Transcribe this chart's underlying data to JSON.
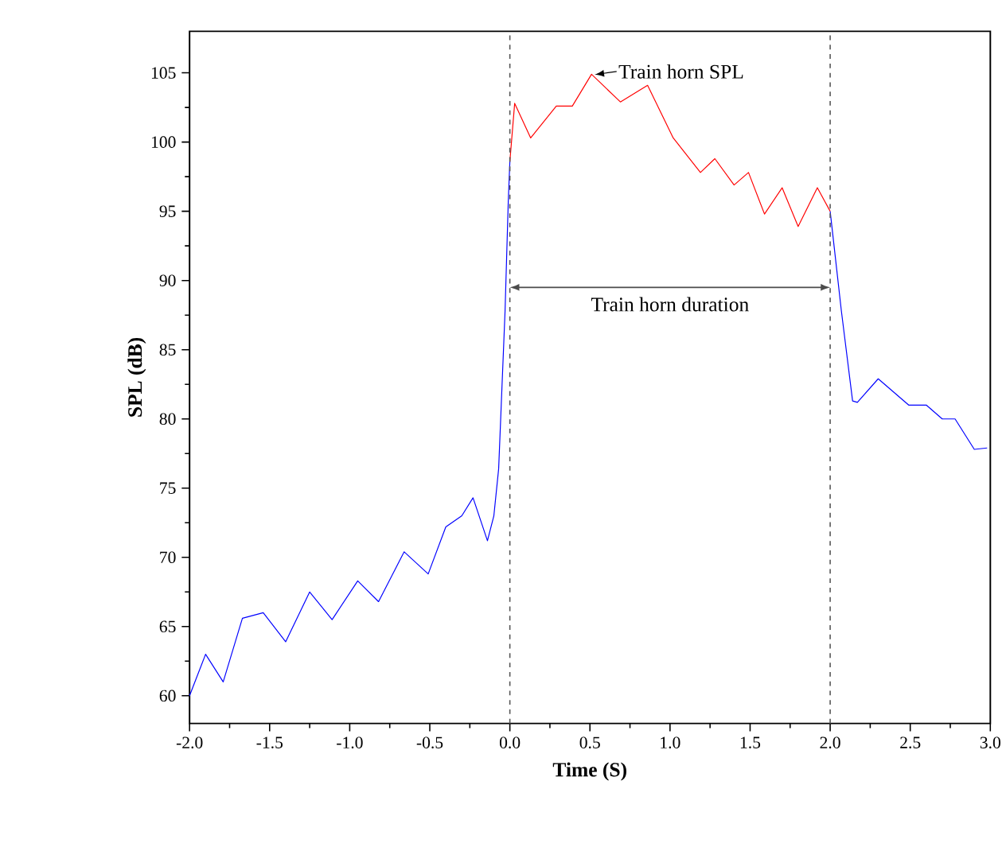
{
  "chart_data": {
    "type": "line",
    "xlabel": "Time (S)",
    "ylabel": "SPL (dB)",
    "xlim": [
      -2,
      3
    ],
    "ylim": [
      58,
      108
    ],
    "xticks": [
      {
        "value": -2,
        "label": "-2.0"
      },
      {
        "value": -1.5,
        "label": "-1.5"
      },
      {
        "value": -1,
        "label": "-1.0"
      },
      {
        "value": -0.5,
        "label": "-0.5"
      },
      {
        "value": 0,
        "label": "0.0"
      },
      {
        "value": 0.5,
        "label": "0.5"
      },
      {
        "value": 1,
        "label": "1.0"
      },
      {
        "value": 1.5,
        "label": "1.5"
      },
      {
        "value": 2,
        "label": "2.0"
      },
      {
        "value": 2.5,
        "label": "2.5"
      },
      {
        "value": 3,
        "label": "3.0"
      }
    ],
    "yticks": [
      60,
      65,
      70,
      75,
      80,
      85,
      90,
      95,
      100,
      105
    ],
    "marker": "none",
    "line_style": "solid",
    "grid": false,
    "series": [
      {
        "color": "#0000ff",
        "x": [
          -2.0,
          -1.9,
          -1.79,
          -1.67,
          -1.54,
          -1.4,
          -1.25,
          -1.11,
          -0.95,
          -0.82,
          -0.66,
          -0.51,
          -0.4,
          -0.3,
          -0.23,
          -0.14,
          -0.1,
          -0.07,
          -0.03,
          -0.01,
          0.0,
          1.0,
          2.0,
          2.07,
          2.14,
          2.17,
          2.3,
          2.49,
          2.6,
          2.7,
          2.78,
          2.9,
          2.98
        ],
        "values": [
          60,
          63.0,
          61.0,
          65.6,
          66.0,
          63.9,
          67.5,
          65.5,
          68.3,
          66.8,
          70.4,
          68.8,
          72.2,
          73.0,
          74.3,
          71.2,
          73.0,
          76.4,
          87.8,
          95.7,
          98.6,
          null,
          95.0,
          87.8,
          81.3,
          81.2,
          82.9,
          81.0,
          81.0,
          80.0,
          80.0,
          77.8,
          77.9
        ]
      },
      {
        "color": "#ff0000",
        "x": [
          0.0,
          0.03,
          0.13,
          0.29,
          0.39,
          0.51,
          0.69,
          0.86,
          1.02,
          1.19,
          1.28,
          1.4,
          1.49,
          1.59,
          1.7,
          1.8,
          1.92,
          2.0
        ],
        "values": [
          98.6,
          102.8,
          100.3,
          102.6,
          102.6,
          104.9,
          102.9,
          104.1,
          100.3,
          97.8,
          98.8,
          96.9,
          97.8,
          94.8,
          96.7,
          93.9,
          96.7,
          95.0
        ]
      }
    ],
    "ref_lines": [
      {
        "axis": "x",
        "value": 0,
        "color": "#555555",
        "line_style": "dashed"
      },
      {
        "axis": "x",
        "value": 2,
        "color": "#555555",
        "line_style": "dashed"
      }
    ],
    "annotations": [
      {
        "text": "Train horn SPL",
        "x": 0.51,
        "y": 104.9
      },
      "Train horn duration"
    ]
  }
}
